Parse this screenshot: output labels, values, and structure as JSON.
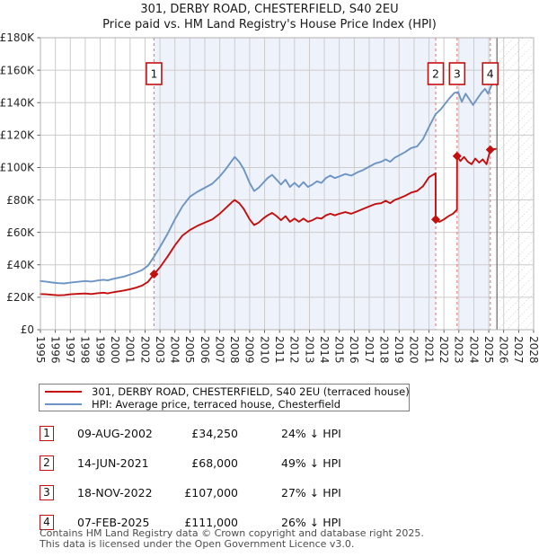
{
  "header": {
    "title_line1": "301, DERBY ROAD, CHESTERFIELD, S40 2EU",
    "title_line2": "Price paid vs. HM Land Registry's House Price Index (HPI)"
  },
  "chart_data": {
    "type": "line",
    "title": "301, DERBY ROAD, CHESTERFIELD, S40 2EU — Price paid vs. HM Land Registry's House Price Index (HPI)",
    "values_unit": "GBP thousands",
    "xlim": [
      1995,
      2028
    ],
    "ylim": [
      0,
      180
    ],
    "grid": true,
    "x_axis": {
      "ticks": [
        "1995",
        "1996",
        "1997",
        "1998",
        "1999",
        "2000",
        "2001",
        "2002",
        "2003",
        "2004",
        "2005",
        "2006",
        "2007",
        "2008",
        "2009",
        "2010",
        "2011",
        "2012",
        "2013",
        "2014",
        "2015",
        "2016",
        "2017",
        "2018",
        "2019",
        "2020",
        "2021",
        "2022",
        "2023",
        "2024",
        "2025",
        "2026",
        "2027",
        "2028"
      ]
    },
    "y_axis": {
      "tick_values": [
        0,
        20,
        40,
        60,
        80,
        100,
        120,
        140,
        160,
        180
      ],
      "tick_labels": [
        "£0",
        "£20K",
        "£40K",
        "£60K",
        "£80K",
        "£100K",
        "£120K",
        "£140K",
        "£160K",
        "£180K"
      ]
    },
    "series": [
      {
        "name": "301, DERBY ROAD, CHESTERFIELD, S40 2EU (terraced house)",
        "color": "#c40f0f",
        "points": [
          [
            1995,
            22
          ],
          [
            1995.4,
            21.8
          ],
          [
            1995.8,
            21.5
          ],
          [
            1996.2,
            21.2
          ],
          [
            1996.6,
            21.4
          ],
          [
            1997,
            21.8
          ],
          [
            1997.5,
            22.1
          ],
          [
            1998,
            22.3
          ],
          [
            1998.4,
            22
          ],
          [
            1998.8,
            22.5
          ],
          [
            1999.2,
            22.8
          ],
          [
            1999.5,
            22.4
          ],
          [
            1999.8,
            23
          ],
          [
            2000.2,
            23.6
          ],
          [
            2000.6,
            24.2
          ],
          [
            2001,
            25
          ],
          [
            2001.4,
            25.9
          ],
          [
            2001.8,
            27.2
          ],
          [
            2002.2,
            29.5
          ],
          [
            2002.6,
            34.25
          ],
          [
            2003,
            38.5
          ],
          [
            2003.5,
            45
          ],
          [
            2004,
            52
          ],
          [
            2004.5,
            58
          ],
          [
            2005,
            61.5
          ],
          [
            2005.5,
            64
          ],
          [
            2006,
            66
          ],
          [
            2006.5,
            68
          ],
          [
            2007,
            71.5
          ],
          [
            2007.4,
            75
          ],
          [
            2007.8,
            78.5
          ],
          [
            2008,
            80
          ],
          [
            2008.3,
            78
          ],
          [
            2008.6,
            74.5
          ],
          [
            2009,
            68
          ],
          [
            2009.3,
            64.5
          ],
          [
            2009.6,
            66
          ],
          [
            2009.9,
            68.5
          ],
          [
            2010.2,
            70.5
          ],
          [
            2010.5,
            72
          ],
          [
            2010.8,
            70
          ],
          [
            2011.1,
            67.5
          ],
          [
            2011.4,
            70
          ],
          [
            2011.7,
            66.5
          ],
          [
            2012,
            68.5
          ],
          [
            2012.3,
            66.5
          ],
          [
            2012.6,
            68.5
          ],
          [
            2012.9,
            66.5
          ],
          [
            2013.2,
            67.5
          ],
          [
            2013.5,
            69
          ],
          [
            2013.8,
            68.5
          ],
          [
            2014.1,
            70.5
          ],
          [
            2014.4,
            71.5
          ],
          [
            2014.7,
            70.5
          ],
          [
            2015,
            71.5
          ],
          [
            2015.4,
            72.5
          ],
          [
            2015.8,
            71.5
          ],
          [
            2016.2,
            73
          ],
          [
            2016.6,
            74.5
          ],
          [
            2017,
            76
          ],
          [
            2017.4,
            77.5
          ],
          [
            2017.8,
            78
          ],
          [
            2018.1,
            79.5
          ],
          [
            2018.4,
            78
          ],
          [
            2018.7,
            80
          ],
          [
            2019,
            81
          ],
          [
            2019.4,
            82.5
          ],
          [
            2019.8,
            84.5
          ],
          [
            2020.2,
            85.5
          ],
          [
            2020.6,
            88.5
          ],
          [
            2021,
            94
          ],
          [
            2021.44,
            96.5
          ],
          [
            2021.45,
            68
          ],
          [
            2021.7,
            66.5
          ],
          [
            2022,
            68
          ],
          [
            2022.3,
            70
          ],
          [
            2022.6,
            71.5
          ],
          [
            2022.87,
            74
          ],
          [
            2022.88,
            107
          ],
          [
            2023.1,
            104
          ],
          [
            2023.35,
            106.5
          ],
          [
            2023.6,
            103.5
          ],
          [
            2023.85,
            102
          ],
          [
            2024.1,
            105.5
          ],
          [
            2024.35,
            103
          ],
          [
            2024.6,
            105
          ],
          [
            2024.85,
            102
          ],
          [
            2025.1,
            111
          ],
          [
            2025.5,
            111.5
          ]
        ]
      },
      {
        "name": "HPI: Average price, terraced house, Chesterfield",
        "color": "#6d94c6",
        "points": [
          [
            1995,
            30
          ],
          [
            1995.4,
            29.6
          ],
          [
            1995.8,
            29.1
          ],
          [
            1996.2,
            28.7
          ],
          [
            1996.6,
            28.5
          ],
          [
            1997,
            29
          ],
          [
            1997.5,
            29.5
          ],
          [
            1998,
            30
          ],
          [
            1998.4,
            29.7
          ],
          [
            1998.8,
            30.3
          ],
          [
            1999.2,
            30.8
          ],
          [
            1999.5,
            30.4
          ],
          [
            1999.8,
            31.2
          ],
          [
            2000.2,
            32
          ],
          [
            2000.6,
            32.8
          ],
          [
            2001,
            34
          ],
          [
            2001.4,
            35.2
          ],
          [
            2001.8,
            36.8
          ],
          [
            2002.2,
            39.5
          ],
          [
            2002.6,
            45
          ],
          [
            2003,
            51
          ],
          [
            2003.5,
            59
          ],
          [
            2004,
            68
          ],
          [
            2004.5,
            76
          ],
          [
            2005,
            82
          ],
          [
            2005.5,
            85
          ],
          [
            2006,
            87.5
          ],
          [
            2006.5,
            90
          ],
          [
            2007,
            94.5
          ],
          [
            2007.4,
            99
          ],
          [
            2007.8,
            104
          ],
          [
            2008,
            106.5
          ],
          [
            2008.3,
            103.5
          ],
          [
            2008.6,
            99
          ],
          [
            2009,
            90.5
          ],
          [
            2009.3,
            85.5
          ],
          [
            2009.6,
            87.5
          ],
          [
            2009.9,
            90.5
          ],
          [
            2010.2,
            93.5
          ],
          [
            2010.5,
            95.5
          ],
          [
            2010.8,
            92.5
          ],
          [
            2011.1,
            89.5
          ],
          [
            2011.4,
            92.5
          ],
          [
            2011.7,
            88
          ],
          [
            2012,
            90.5
          ],
          [
            2012.3,
            88
          ],
          [
            2012.6,
            91
          ],
          [
            2012.9,
            88
          ],
          [
            2013.2,
            89.5
          ],
          [
            2013.5,
            91.5
          ],
          [
            2013.8,
            90.5
          ],
          [
            2014.1,
            93.5
          ],
          [
            2014.4,
            95
          ],
          [
            2014.7,
            93.5
          ],
          [
            2015,
            94.5
          ],
          [
            2015.4,
            96
          ],
          [
            2015.8,
            95
          ],
          [
            2016.2,
            97
          ],
          [
            2016.6,
            98.5
          ],
          [
            2017,
            100.5
          ],
          [
            2017.4,
            102.5
          ],
          [
            2017.8,
            103.5
          ],
          [
            2018.1,
            105
          ],
          [
            2018.4,
            103.5
          ],
          [
            2018.7,
            106
          ],
          [
            2019,
            107.5
          ],
          [
            2019.4,
            109.5
          ],
          [
            2019.8,
            112
          ],
          [
            2020.2,
            113
          ],
          [
            2020.6,
            117.5
          ],
          [
            2021,
            125
          ],
          [
            2021.45,
            133
          ],
          [
            2021.8,
            136
          ],
          [
            2022.1,
            139.5
          ],
          [
            2022.4,
            143
          ],
          [
            2022.7,
            146
          ],
          [
            2022.95,
            146.5
          ],
          [
            2023.2,
            140.5
          ],
          [
            2023.45,
            145.5
          ],
          [
            2023.7,
            142
          ],
          [
            2023.95,
            138.5
          ],
          [
            2024.2,
            142
          ],
          [
            2024.5,
            146
          ],
          [
            2024.75,
            148.5
          ],
          [
            2024.95,
            145.5
          ],
          [
            2025.2,
            151
          ],
          [
            2025.4,
            152.5
          ],
          [
            2025.55,
            150.5
          ]
        ]
      }
    ],
    "sales": [
      {
        "marker": "1",
        "date": "09-AUG-2002",
        "price_k": 34.25,
        "year": 2002.6
      },
      {
        "marker": "2",
        "date": "14-JUN-2021",
        "price_k": 68,
        "year": 2021.45
      },
      {
        "marker": "3",
        "date": "18-NOV-2022",
        "price_k": 107,
        "year": 2022.88
      },
      {
        "marker": "4",
        "date": "07-FEB-2025",
        "price_k": 111,
        "year": 2025.1
      }
    ],
    "shaded_regions": [
      [
        2002.6,
        2021.45
      ],
      [
        2022.88,
        2025.1
      ]
    ],
    "shade_color": "#eef2fa",
    "dashed_line_color": "#f08080",
    "today_line_year": 2025.55,
    "today_line_color": "#7a7a7a",
    "future_region": {
      "start": 2025.55,
      "end": 2028
    },
    "grid_color": "#cccccc",
    "border_color": "#b0b0b0"
  },
  "legend": {
    "items": [
      {
        "label": "301, DERBY ROAD, CHESTERFIELD, S40 2EU (terraced house)",
        "color": "#c40f0f"
      },
      {
        "label": "HPI: Average price, terraced house, Chesterfield",
        "color": "#6d94c6"
      }
    ]
  },
  "table": {
    "rows": [
      {
        "num": "1",
        "date": "09-AUG-2002",
        "price": "£34,250",
        "pct": "24% ↓ HPI"
      },
      {
        "num": "2",
        "date": "14-JUN-2021",
        "price": "£68,000",
        "pct": "49% ↓ HPI"
      },
      {
        "num": "3",
        "date": "18-NOV-2022",
        "price": "£107,000",
        "pct": "27% ↓ HPI"
      },
      {
        "num": "4",
        "date": "07-FEB-2025",
        "price": "£111,000",
        "pct": "26% ↓ HPI"
      }
    ]
  },
  "footer": {
    "line1": "Contains HM Land Registry data © Crown copyright and database right 2025.",
    "line2": "This data is licensed under the Open Government Licence v3.0."
  }
}
